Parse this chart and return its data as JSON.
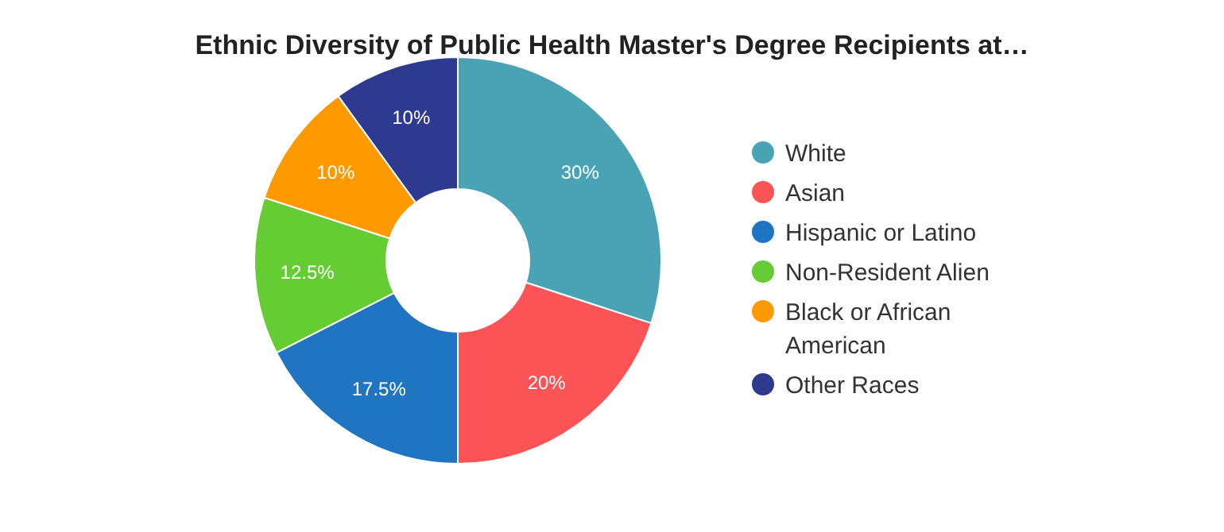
{
  "chart_data": {
    "type": "donut",
    "title": "Ethnic Diversity of Public Health Master's Degree Recipients at…",
    "categories": [
      "White",
      "Asian",
      "Hispanic or Latino",
      "Non-Resident Alien",
      "Black or African American",
      "Other Races"
    ],
    "values": [
      30,
      20,
      17.5,
      12.5,
      10,
      10
    ],
    "colors": [
      "#4aa3b5",
      "#fc5356",
      "#1f75c2",
      "#66cc33",
      "#fe9a00",
      "#2e3a90"
    ],
    "value_labels": [
      "30%",
      "20%",
      "17.5%",
      "12.5%",
      "10%",
      "10%"
    ],
    "legend": "right"
  }
}
